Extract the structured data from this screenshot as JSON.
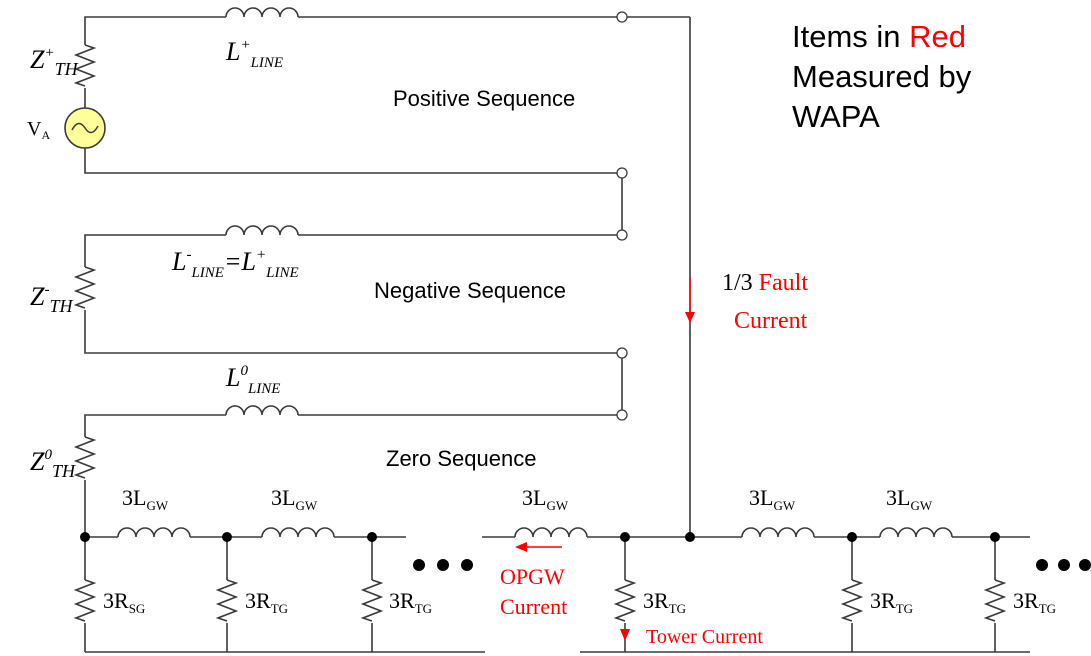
{
  "legend": {
    "line1_prefix": "Items in ",
    "line1_highlight": "Red",
    "line2": "Measured by",
    "line3": "WAPA"
  },
  "sequences": {
    "positive": "Positive Sequence",
    "negative": "Negative Sequence",
    "zero": "Zero Sequence"
  },
  "source": {
    "base": "V",
    "sub": "A"
  },
  "impedances": {
    "z_pos": {
      "base": "Z",
      "sup": "+",
      "sub": "TH"
    },
    "z_neg": {
      "base": "Z",
      "sup": "-",
      "sub": "TH"
    },
    "z_zero": {
      "base": "Z",
      "sup": "0",
      "sub": "TH"
    }
  },
  "inductors": {
    "l_pos": {
      "base": "L",
      "sup": "+",
      "sub": "LINE"
    },
    "l_neg": {
      "base": "L",
      "sup": "-",
      "sub": "LINE",
      "eq": "=",
      "base2": "L",
      "sup2": "+",
      "sub2": "LINE"
    },
    "l_zero": {
      "base": "L",
      "sup": "0",
      "sub": "LINE"
    }
  },
  "ground_wire": {
    "inductor": {
      "base": "3L",
      "sub": "GW"
    },
    "r_sg": {
      "base": "3R",
      "sub": "SG"
    },
    "r_tg": {
      "base": "3R",
      "sub": "TG"
    }
  },
  "measured": {
    "fault_line1_prefix": "1/3 ",
    "fault_line1_red": "Fault",
    "fault_line2": "Current",
    "opgw_line1": "OPGW",
    "opgw_line2": "Current",
    "tower": "Tower Current"
  },
  "colors": {
    "measured": "#ff0000",
    "source_fill": "#ffff99",
    "wire": "#3a3a3a"
  },
  "icons": {
    "voltage_source": "ac-source-icon",
    "arrow": "arrow-icon"
  }
}
